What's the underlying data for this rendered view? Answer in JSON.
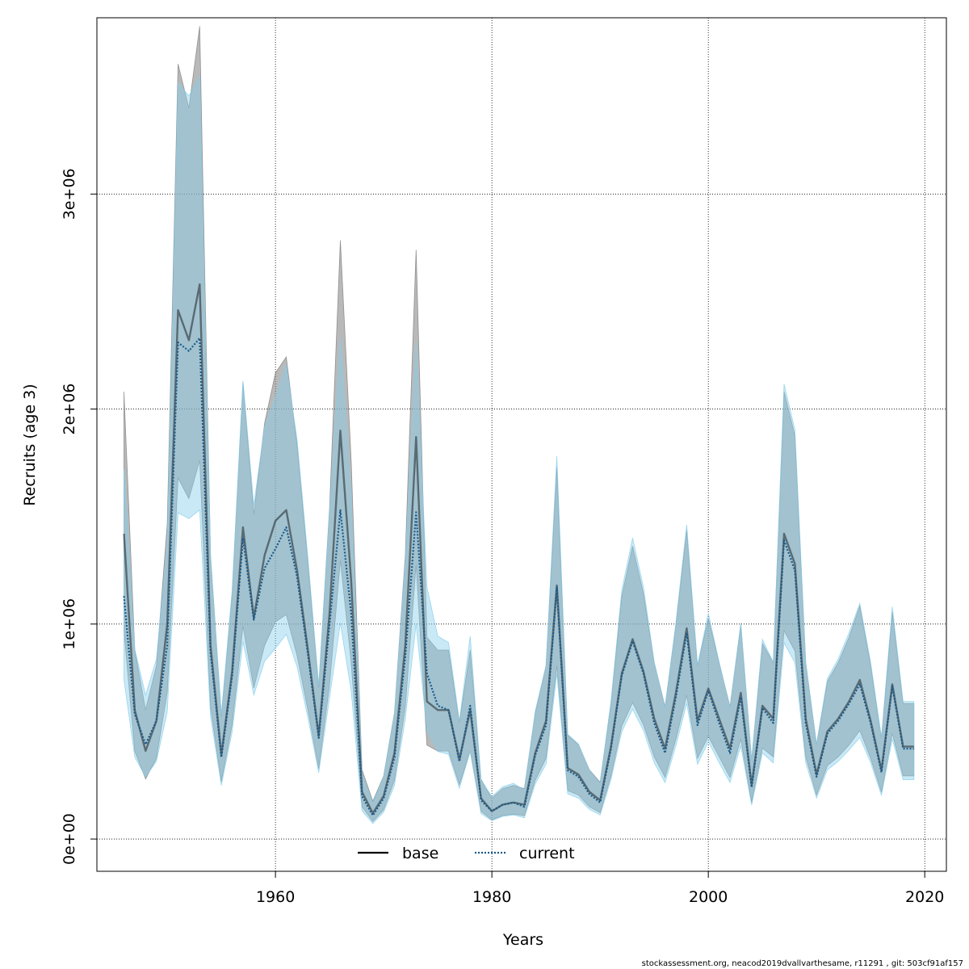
{
  "chart_data": {
    "type": "line",
    "xlabel": "Years",
    "ylabel": "Recruits (age 3)",
    "xlim": [
      1943.5,
      2022
    ],
    "ylim": [
      -150000,
      3820000
    ],
    "x_ticks": [
      1960,
      1980,
      2000,
      2020
    ],
    "x_tick_labels": [
      "1960",
      "1980",
      "2000",
      "2020"
    ],
    "y_ticks": [
      0,
      1000000,
      2000000,
      3000000
    ],
    "y_tick_labels": [
      "0e+00",
      "1e+06",
      "2e+06",
      "3e+06"
    ],
    "grid": true,
    "legend_position": "bottom-center",
    "years": [
      1946,
      1947,
      1948,
      1949,
      1950,
      1951,
      1952,
      1953,
      1954,
      1955,
      1956,
      1957,
      1958,
      1959,
      1960,
      1961,
      1962,
      1963,
      1964,
      1965,
      1966,
      1967,
      1968,
      1969,
      1970,
      1971,
      1972,
      1973,
      1974,
      1975,
      1976,
      1977,
      1978,
      1979,
      1980,
      1981,
      1982,
      1983,
      1984,
      1985,
      1986,
      1987,
      1988,
      1989,
      1990,
      1991,
      1992,
      1993,
      1994,
      1995,
      1996,
      1997,
      1998,
      1999,
      2000,
      2001,
      2002,
      2003,
      2004,
      2005,
      2006,
      2007,
      2008,
      2009,
      2010,
      2011,
      2012,
      2013,
      2014,
      2015,
      2016,
      2017,
      2018,
      2019
    ],
    "series": [
      {
        "name": "base",
        "color": "#000000",
        "band_color": "#808080",
        "style": "solid",
        "values": [
          1420000,
          600000,
          410000,
          550000,
          1000000,
          2460000,
          2320000,
          2580000,
          900000,
          390000,
          780000,
          1450000,
          1030000,
          1320000,
          1480000,
          1530000,
          1250000,
          880000,
          480000,
          1050000,
          1900000,
          1200000,
          220000,
          120000,
          200000,
          400000,
          900000,
          1870000,
          640000,
          600000,
          600000,
          370000,
          600000,
          190000,
          130000,
          160000,
          170000,
          160000,
          400000,
          550000,
          1180000,
          330000,
          300000,
          220000,
          180000,
          430000,
          770000,
          930000,
          780000,
          560000,
          420000,
          680000,
          980000,
          550000,
          700000,
          560000,
          420000,
          680000,
          250000,
          620000,
          560000,
          1420000,
          1280000,
          560000,
          300000,
          500000,
          560000,
          640000,
          740000,
          550000,
          320000,
          720000,
          430000,
          430000
        ]
      },
      {
        "name": "current",
        "color": "#1a5a8a",
        "band_color": "#87ceeb",
        "style": "dotted",
        "values": [
          1130000,
          580000,
          440000,
          550000,
          900000,
          2310000,
          2270000,
          2330000,
          870000,
          380000,
          760000,
          1400000,
          1020000,
          1260000,
          1350000,
          1450000,
          1220000,
          860000,
          470000,
          1000000,
          1530000,
          1050000,
          200000,
          110000,
          190000,
          380000,
          850000,
          1520000,
          770000,
          620000,
          600000,
          360000,
          620000,
          180000,
          130000,
          160000,
          170000,
          150000,
          390000,
          530000,
          1170000,
          320000,
          290000,
          210000,
          170000,
          420000,
          760000,
          920000,
          770000,
          540000,
          400000,
          660000,
          960000,
          530000,
          690000,
          540000,
          400000,
          660000,
          240000,
          610000,
          540000,
          1390000,
          1250000,
          540000,
          290000,
          490000,
          550000,
          630000,
          720000,
          540000,
          310000,
          710000,
          420000,
          420000
        ]
      }
    ],
    "annotation": "stockassessment.org, neacod2019dvallvarthesame, r11291 , git: 503cf91af157"
  }
}
